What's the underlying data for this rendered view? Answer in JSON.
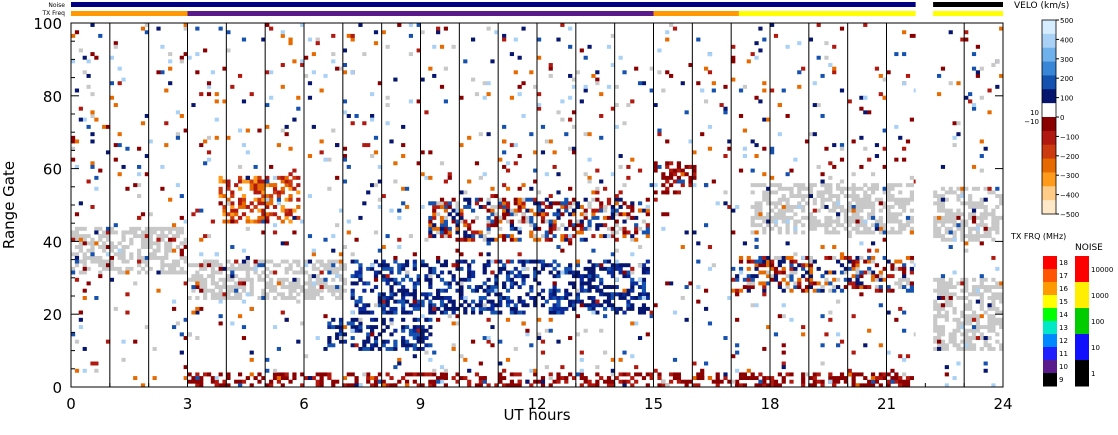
{
  "chart_data": {
    "type": "heatmap",
    "xlabel": "UT hours",
    "ylabel": "Range Gate",
    "xlim": [
      0,
      24
    ],
    "ylim": [
      0,
      100
    ],
    "x_ticks": [
      "0",
      "3",
      "6",
      "9",
      "12",
      "15",
      "18",
      "21",
      "24"
    ],
    "y_ticks": [
      "0",
      "20",
      "40",
      "60",
      "80",
      "100"
    ],
    "top_bar_labels": {
      "noise": "Noise",
      "tx_freq": "TX Freq"
    },
    "noise_bar_segments": [
      {
        "start": 0.0,
        "end": 21.75,
        "color": "#000080"
      },
      {
        "start": 22.2,
        "end": 24.0,
        "color": "#000000"
      }
    ],
    "tx_freq_bar_segments": [
      {
        "start": 0.0,
        "end": 3.0,
        "color": "#ff9900",
        "freq_band": "16"
      },
      {
        "start": 3.0,
        "end": 15.0,
        "color": "#5a1a8c",
        "freq_band": "10"
      },
      {
        "start": 15.0,
        "end": 17.2,
        "color": "#ff9900",
        "freq_band": "16"
      },
      {
        "start": 17.2,
        "end": 21.75,
        "color": "#ffff00",
        "freq_band": "15"
      },
      {
        "start": 22.2,
        "end": 24.0,
        "color": "#ffff00",
        "freq_band": "15"
      }
    ],
    "scan_boundaries_ut": [
      1.0,
      2.0,
      3.0,
      4.0,
      5.0,
      6.0,
      7.0,
      8.0,
      9.0,
      10.0,
      11.0,
      12.0,
      13.0,
      14.0,
      15.0,
      16.0,
      17.0,
      18.0,
      19.0,
      20.0,
      21.0,
      23.0
    ],
    "data_gap_ut": [
      21.75,
      22.2
    ],
    "features": [
      {
        "name": "ground scatter band",
        "x": [
          0.0,
          3.0
        ],
        "y": [
          31,
          44
        ],
        "kind": "gray"
      },
      {
        "name": "ground scatter band",
        "x": [
          3.0,
          7.0
        ],
        "y": [
          24,
          35
        ],
        "kind": "gray"
      },
      {
        "name": "negative velocity patch",
        "x": [
          3.8,
          5.8
        ],
        "y": [
          45,
          58
        ],
        "kind": "orange"
      },
      {
        "name": "positive velocity band",
        "x": [
          7.2,
          14.8
        ],
        "y": [
          20,
          35
        ],
        "kind": "blue"
      },
      {
        "name": "positive velocity patch",
        "x": [
          6.5,
          9.2
        ],
        "y": [
          10,
          19
        ],
        "kind": "blue"
      },
      {
        "name": "mixed scatter",
        "x": [
          9.2,
          14.8
        ],
        "y": [
          40,
          52
        ],
        "kind": "mixed"
      },
      {
        "name": "negative velocity patch",
        "x": [
          15.0,
          16.0
        ],
        "y": [
          53,
          62
        ],
        "kind": "red"
      },
      {
        "name": "ground scatter band",
        "x": [
          17.5,
          21.7
        ],
        "y": [
          42,
          56
        ],
        "kind": "gray"
      },
      {
        "name": "mixed scatter",
        "x": [
          17.0,
          21.7
        ],
        "y": [
          26,
          36
        ],
        "kind": "mixed"
      },
      {
        "name": "ground scatter band",
        "x": [
          22.2,
          24.0
        ],
        "y": [
          10,
          30
        ],
        "kind": "gray"
      },
      {
        "name": "ground scatter band",
        "x": [
          22.2,
          24.0
        ],
        "y": [
          40,
          55
        ],
        "kind": "gray"
      },
      {
        "name": "near range scatter",
        "x": [
          3.0,
          21.7
        ],
        "y": [
          0,
          4
        ],
        "kind": "red"
      }
    ],
    "velo_colorbar": {
      "title": "VELO (km/s)",
      "labels": [
        "500",
        "400",
        "300",
        "200",
        "100",
        "0",
        "−100",
        "−200",
        "−300",
        "−400",
        "−500"
      ],
      "side_labels": [
        "10",
        "−10"
      ],
      "colors": [
        "#d6ecff",
        "#a9d1f5",
        "#6fb1ea",
        "#3a86d6",
        "#1552b0",
        "#06166e",
        "#ffffff",
        "#8a0000",
        "#b01810",
        "#cc3a10",
        "#e66a00",
        "#ff9a1a",
        "#ffcc88",
        "#ffe8c8"
      ]
    },
    "txfreq_colorbar": {
      "title": "TX FRQ (MHz)",
      "labels": [
        "18",
        "17",
        "16",
        "15",
        "14",
        "13",
        "12",
        "11",
        "10",
        "9"
      ],
      "colors": [
        "#ff0000",
        "#ff5500",
        "#ff9900",
        "#ffff00",
        "#00ff00",
        "#00e8c8",
        "#0088ff",
        "#2020ff",
        "#5a1a8c",
        "#000000"
      ]
    },
    "noise_colorbar": {
      "title": "NOISE",
      "labels": [
        "10000",
        "1000",
        "100",
        "10",
        "1"
      ],
      "colors": [
        "#ff0000",
        "#ffee00",
        "#00cc00",
        "#1010ff",
        "#000000"
      ]
    },
    "colors": {
      "ground_scatter": "#c8c8c8"
    }
  }
}
